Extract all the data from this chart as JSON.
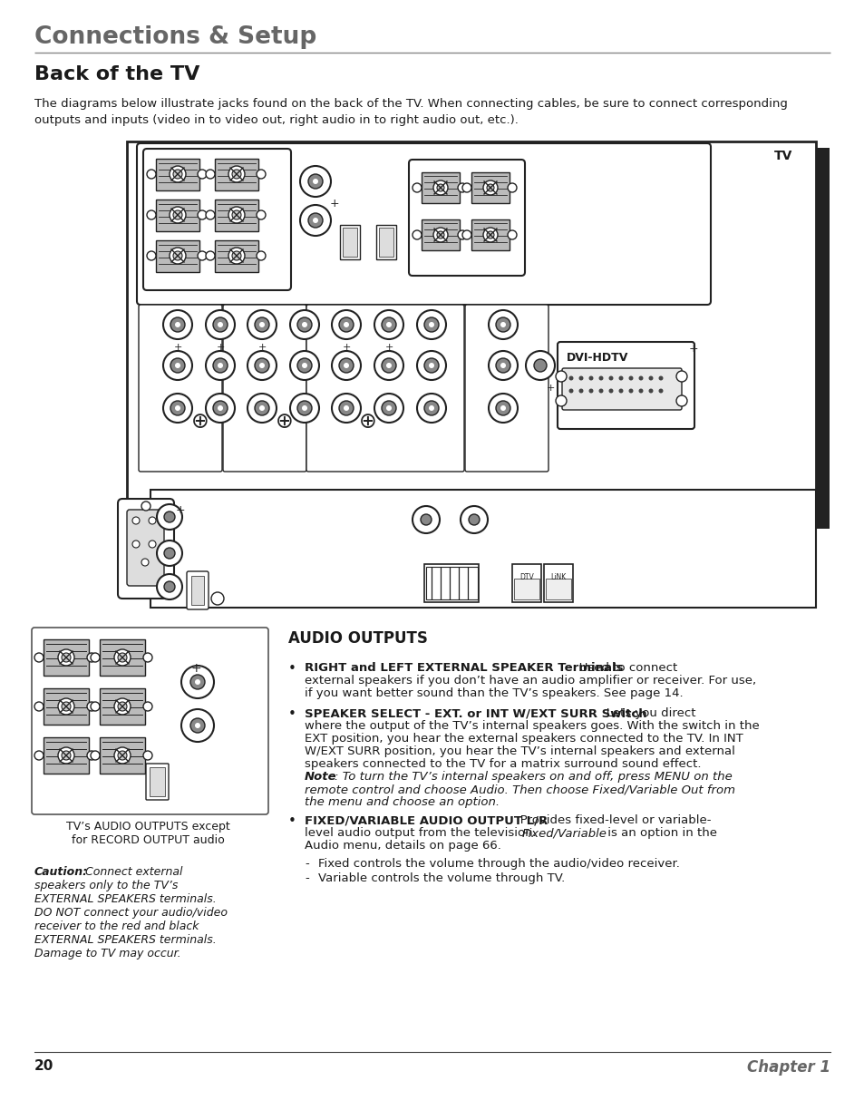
{
  "title": "Connections & Setup",
  "section_title": "Back of the TV",
  "intro_text": "The diagrams below illustrate jacks found on the back of the TV. When connecting cables, be sure to connect corresponding\noutputs and inputs (video in to video out, right audio in to right audio out, etc.).",
  "audio_outputs_title": "AUDIO OUTPUTS",
  "bullet1_bold": "RIGHT and LEFT EXTERNAL SPEAKER Terminals",
  "bullet1_rest": "   Used to connect",
  "bullet1_line2": "external speakers if you don’t have an audio amplifier or receiver. For use,",
  "bullet1_line3": "if you want better sound than the TV’s speakers. See page 14.",
  "bullet2_bold": "SPEAKER SELECT - EXT. or INT W/EXT SURR Switch",
  "bullet2_rest": "   Lets you direct",
  "bullet2_line2": "where the output of the TV’s internal speakers goes. With the switch in the",
  "bullet2_line3": "EXT position, you hear the external speakers connected to the TV. In INT",
  "bullet2_line4": "W/EXT SURR position, you hear the TV’s internal speakers and external",
  "bullet2_line5": "speakers connected to the TV for a matrix surround sound effect.",
  "note_bold": "Note",
  "note_rest": ": To turn the TV’s internal speakers on and off, press MENU on the",
  "note_line2": "remote control and choose Audio. Then choose Fixed/Variable Out from",
  "note_line3": "the menu and choose an option.",
  "bullet3_bold": "FIXED/VARIABLE AUDIO OUTPUT L/R",
  "bullet3_rest": "   Provides fixed-level or variable-",
  "bullet3_line2": "level audio output from the television. ",
  "bullet3_italic": "Fixed/Variable",
  "bullet3_line2b": " is an option in the",
  "bullet3_line3": "Audio menu, details on page 66.",
  "sub1": "Fixed controls the volume through the audio/video receiver.",
  "sub2": "Variable controls the volume through TV.",
  "small_label1": "TV’s AUDIO OUTPUTS except",
  "small_label2": "for RECORD OUTPUT audio",
  "caution_bold": "Caution:",
  "caution_rest": " Connect external",
  "caution_line2": "speakers only to the TV’s",
  "caution_line3": "EXTERNAL SPEAKERS terminals.",
  "caution_line4": "DO NOT connect your audio/video",
  "caution_line5": "receiver to the red and black",
  "caution_line6": "EXTERNAL SPEAKERS terminals.",
  "caution_line7": "Damage to TV may occur.",
  "page_num": "20",
  "chapter": "Chapter 1",
  "bg_color": "#ffffff",
  "text_color": "#1a1a1a",
  "title_color": "#666666",
  "line_color": "#888888",
  "diagram_edge": "#222222",
  "diagram_inner": "#555555"
}
